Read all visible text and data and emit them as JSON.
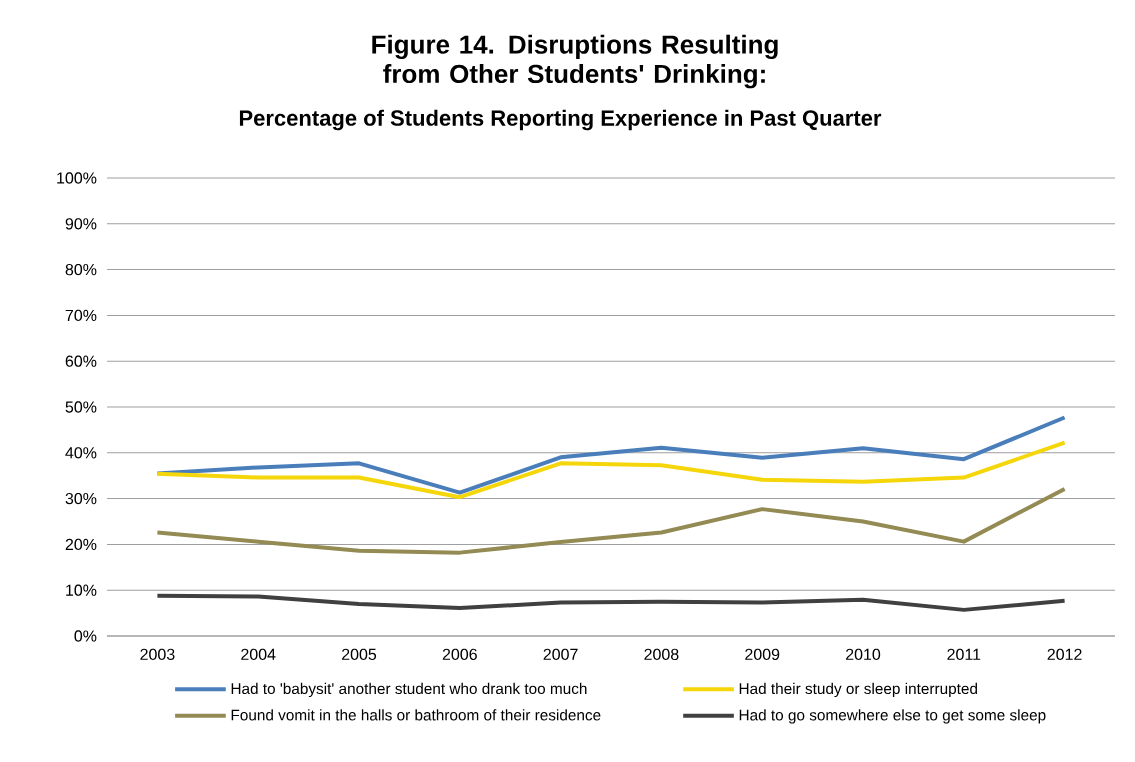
{
  "chart_data": {
    "type": "line",
    "title": "Figure 14.  Disruptions Resulting from Other Students' Drinking:",
    "subtitle": "Percentage of Students Reporting Experience in Past Quarter",
    "categories": [
      "2003",
      "2004",
      "2005",
      "2006",
      "2007",
      "2008",
      "2009",
      "2010",
      "2011",
      "2012"
    ],
    "series": [
      {
        "name": "Had to 'babysit' another student who drank too much",
        "color": "#4a7ebb",
        "values": [
          35.5,
          36.8,
          37.7,
          31.3,
          39.0,
          41.1,
          38.9,
          41.0,
          38.6,
          47.7
        ]
      },
      {
        "name": "Had their study or sleep interrupted",
        "color": "#f5d60a",
        "values": [
          35.4,
          34.6,
          34.6,
          30.3,
          37.7,
          37.3,
          34.1,
          33.7,
          34.6,
          42.2
        ]
      },
      {
        "name": "Found vomit in the halls or bathroom of their residence",
        "color": "#948a54",
        "values": [
          22.6,
          20.6,
          18.6,
          18.2,
          20.5,
          22.6,
          27.7,
          25.0,
          20.6,
          32.1
        ]
      },
      {
        "name": "Had to go somewhere else to get some sleep",
        "color": "#404040",
        "values": [
          8.8,
          8.6,
          7.0,
          6.1,
          7.3,
          7.5,
          7.3,
          7.9,
          5.7,
          7.7
        ]
      }
    ],
    "ylim": [
      0,
      100
    ],
    "yticks": [
      {
        "value": 0,
        "label": "0%"
      },
      {
        "value": 10,
        "label": "10%"
      },
      {
        "value": 20,
        "label": "20%"
      },
      {
        "value": 30,
        "label": "30%"
      },
      {
        "value": 40,
        "label": "40%"
      },
      {
        "value": 50,
        "label": "50%"
      },
      {
        "value": 60,
        "label": "60%"
      },
      {
        "value": 70,
        "label": "70%"
      },
      {
        "value": 80,
        "label": "80%"
      },
      {
        "value": 90,
        "label": "90%"
      },
      {
        "value": 100,
        "label": "100%"
      }
    ],
    "grid": "y",
    "legend": "bottom",
    "marker": "none",
    "line_style": "solid"
  }
}
